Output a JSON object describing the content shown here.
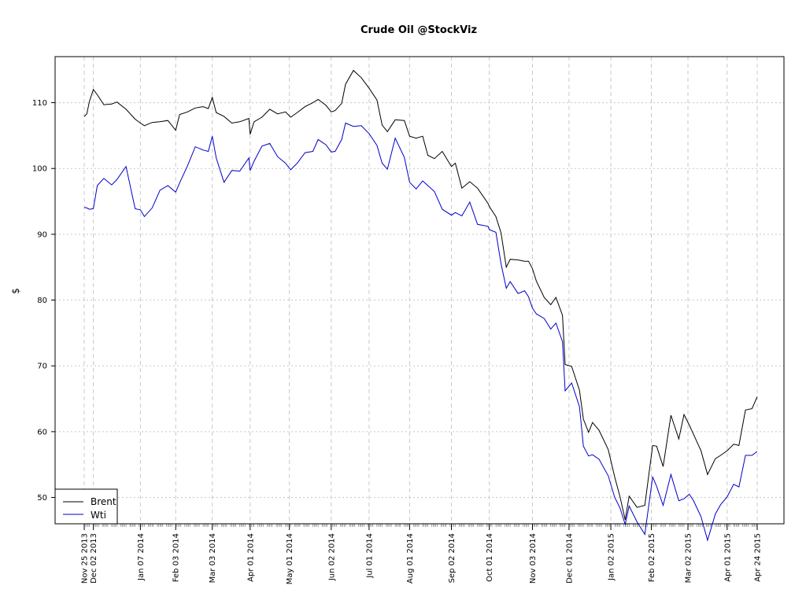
{
  "chart_data": {
    "type": "line",
    "title": "Crude Oil @StockViz",
    "xlabel": "",
    "ylabel": "$",
    "ylim": [
      46,
      117
    ],
    "grid": true,
    "legend_position": "bottom-left",
    "y_ticks": [
      50,
      60,
      70,
      80,
      90,
      100,
      110
    ],
    "x_ticks": [
      "Nov 25 2013",
      "Dec 02 2013",
      "Jan 07 2014",
      "Feb 03 2014",
      "Mar 03 2014",
      "Apr 01 2014",
      "May 01 2014",
      "Jun 02 2014",
      "Jul 01 2014",
      "Aug 01 2014",
      "Sep 02 2014",
      "Oct 01 2014",
      "Nov 03 2014",
      "Dec 01 2014",
      "Jan 02 2015",
      "Feb 02 2015",
      "Mar 02 2015",
      "Apr 01 2015",
      "Apr 24 2015"
    ],
    "series": [
      {
        "name": "Brent",
        "color": "#000000",
        "points": [
          [
            "2013-11-25",
            107.9
          ],
          [
            "2013-11-27",
            108.3
          ],
          [
            "2013-11-29",
            110.2
          ],
          [
            "2013-12-02",
            112.0
          ],
          [
            "2013-12-05",
            111.2
          ],
          [
            "2013-12-10",
            109.7
          ],
          [
            "2013-12-16",
            109.8
          ],
          [
            "2013-12-20",
            110.1
          ],
          [
            "2013-12-27",
            109.0
          ],
          [
            "2014-01-03",
            107.5
          ],
          [
            "2014-01-07",
            106.9
          ],
          [
            "2014-01-10",
            106.5
          ],
          [
            "2014-01-16",
            107.0
          ],
          [
            "2014-01-22",
            107.1
          ],
          [
            "2014-01-28",
            107.3
          ],
          [
            "2014-02-03",
            105.8
          ],
          [
            "2014-02-06",
            108.2
          ],
          [
            "2014-02-12",
            108.6
          ],
          [
            "2014-02-18",
            109.2
          ],
          [
            "2014-02-24",
            109.4
          ],
          [
            "2014-02-28",
            109.1
          ],
          [
            "2014-03-03",
            110.8
          ],
          [
            "2014-03-06",
            108.5
          ],
          [
            "2014-03-12",
            107.9
          ],
          [
            "2014-03-18",
            106.9
          ],
          [
            "2014-03-24",
            107.1
          ],
          [
            "2014-03-31",
            107.6
          ],
          [
            "2014-04-01",
            105.2
          ],
          [
            "2014-04-04",
            107.1
          ],
          [
            "2014-04-10",
            107.8
          ],
          [
            "2014-04-16",
            109.0
          ],
          [
            "2014-04-22",
            108.3
          ],
          [
            "2014-04-28",
            108.6
          ],
          [
            "2014-05-02",
            107.8
          ],
          [
            "2014-05-07",
            108.5
          ],
          [
            "2014-05-13",
            109.4
          ],
          [
            "2014-05-19",
            110.0
          ],
          [
            "2014-05-23",
            110.5
          ],
          [
            "2014-05-29",
            109.6
          ],
          [
            "2014-06-02",
            108.6
          ],
          [
            "2014-06-05",
            108.8
          ],
          [
            "2014-06-10",
            109.9
          ],
          [
            "2014-06-13",
            112.8
          ],
          [
            "2014-06-19",
            114.9
          ],
          [
            "2014-06-25",
            113.8
          ],
          [
            "2014-07-01",
            112.2
          ],
          [
            "2014-07-07",
            110.4
          ],
          [
            "2014-07-11",
            106.6
          ],
          [
            "2014-07-15",
            105.6
          ],
          [
            "2014-07-21",
            107.4
          ],
          [
            "2014-07-28",
            107.3
          ],
          [
            "2014-08-01",
            104.9
          ],
          [
            "2014-08-06",
            104.6
          ],
          [
            "2014-08-11",
            104.9
          ],
          [
            "2014-08-15",
            102.0
          ],
          [
            "2014-08-20",
            101.5
          ],
          [
            "2014-08-26",
            102.6
          ],
          [
            "2014-09-02",
            100.3
          ],
          [
            "2014-09-05",
            100.8
          ],
          [
            "2014-09-10",
            97.0
          ],
          [
            "2014-09-16",
            98.0
          ],
          [
            "2014-09-22",
            97.0
          ],
          [
            "2014-09-30",
            94.7
          ],
          [
            "2014-10-01",
            94.2
          ],
          [
            "2014-10-06",
            92.7
          ],
          [
            "2014-10-10",
            90.2
          ],
          [
            "2014-10-14",
            85.0
          ],
          [
            "2014-10-17",
            86.2
          ],
          [
            "2014-10-23",
            86.1
          ],
          [
            "2014-10-28",
            85.9
          ],
          [
            "2014-10-31",
            85.9
          ],
          [
            "2014-11-03",
            84.8
          ],
          [
            "2014-11-06",
            82.9
          ],
          [
            "2014-11-12",
            80.4
          ],
          [
            "2014-11-17",
            79.3
          ],
          [
            "2014-11-21",
            80.4
          ],
          [
            "2014-11-26",
            77.7
          ],
          [
            "2014-11-28",
            70.2
          ],
          [
            "2014-12-03",
            69.9
          ],
          [
            "2014-12-09",
            66.3
          ],
          [
            "2014-12-12",
            61.9
          ],
          [
            "2014-12-16",
            59.9
          ],
          [
            "2014-12-19",
            61.4
          ],
          [
            "2014-12-24",
            60.2
          ],
          [
            "2014-12-31",
            57.3
          ],
          [
            "2015-01-05",
            53.1
          ],
          [
            "2015-01-09",
            50.1
          ],
          [
            "2015-01-13",
            46.6
          ],
          [
            "2015-01-16",
            50.2
          ],
          [
            "2015-01-22",
            48.5
          ],
          [
            "2015-01-28",
            48.8
          ],
          [
            "2015-02-03",
            57.9
          ],
          [
            "2015-02-06",
            57.8
          ],
          [
            "2015-02-11",
            54.7
          ],
          [
            "2015-02-17",
            62.5
          ],
          [
            "2015-02-23",
            58.9
          ],
          [
            "2015-02-27",
            62.6
          ],
          [
            "2015-03-03",
            61.0
          ],
          [
            "2015-03-06",
            59.7
          ],
          [
            "2015-03-12",
            57.1
          ],
          [
            "2015-03-17",
            53.5
          ],
          [
            "2015-03-23",
            55.9
          ],
          [
            "2015-03-27",
            56.4
          ],
          [
            "2015-04-01",
            57.1
          ],
          [
            "2015-04-06",
            58.1
          ],
          [
            "2015-04-10",
            57.9
          ],
          [
            "2015-04-15",
            63.3
          ],
          [
            "2015-04-20",
            63.5
          ],
          [
            "2015-04-24",
            65.3
          ]
        ]
      },
      {
        "name": "Wti",
        "color": "#0000cc",
        "points": [
          [
            "2013-11-25",
            94.1
          ],
          [
            "2013-11-27",
            94.0
          ],
          [
            "2013-11-29",
            93.8
          ],
          [
            "2013-12-02",
            93.9
          ],
          [
            "2013-12-05",
            97.4
          ],
          [
            "2013-12-10",
            98.5
          ],
          [
            "2013-12-16",
            97.5
          ],
          [
            "2013-12-20",
            98.3
          ],
          [
            "2013-12-27",
            100.3
          ],
          [
            "2014-01-03",
            93.9
          ],
          [
            "2014-01-07",
            93.7
          ],
          [
            "2014-01-10",
            92.7
          ],
          [
            "2014-01-16",
            94.0
          ],
          [
            "2014-01-22",
            96.7
          ],
          [
            "2014-01-28",
            97.4
          ],
          [
            "2014-02-03",
            96.4
          ],
          [
            "2014-02-06",
            97.8
          ],
          [
            "2014-02-12",
            100.4
          ],
          [
            "2014-02-18",
            103.3
          ],
          [
            "2014-02-24",
            102.8
          ],
          [
            "2014-02-28",
            102.6
          ],
          [
            "2014-03-03",
            104.9
          ],
          [
            "2014-03-06",
            101.6
          ],
          [
            "2014-03-12",
            97.9
          ],
          [
            "2014-03-18",
            99.7
          ],
          [
            "2014-03-24",
            99.6
          ],
          [
            "2014-03-31",
            101.6
          ],
          [
            "2014-04-01",
            99.7
          ],
          [
            "2014-04-04",
            101.1
          ],
          [
            "2014-04-10",
            103.4
          ],
          [
            "2014-04-16",
            103.8
          ],
          [
            "2014-04-22",
            101.8
          ],
          [
            "2014-04-28",
            100.8
          ],
          [
            "2014-05-02",
            99.8
          ],
          [
            "2014-05-07",
            100.8
          ],
          [
            "2014-05-13",
            102.4
          ],
          [
            "2014-05-19",
            102.6
          ],
          [
            "2014-05-23",
            104.4
          ],
          [
            "2014-05-29",
            103.6
          ],
          [
            "2014-06-02",
            102.5
          ],
          [
            "2014-06-05",
            102.6
          ],
          [
            "2014-06-10",
            104.4
          ],
          [
            "2014-06-13",
            106.9
          ],
          [
            "2014-06-19",
            106.4
          ],
          [
            "2014-06-25",
            106.5
          ],
          [
            "2014-07-01",
            105.3
          ],
          [
            "2014-07-07",
            103.5
          ],
          [
            "2014-07-11",
            100.8
          ],
          [
            "2014-07-15",
            99.9
          ],
          [
            "2014-07-21",
            104.6
          ],
          [
            "2014-07-28",
            101.7
          ],
          [
            "2014-08-01",
            97.9
          ],
          [
            "2014-08-06",
            96.9
          ],
          [
            "2014-08-11",
            98.1
          ],
          [
            "2014-08-15",
            97.4
          ],
          [
            "2014-08-20",
            96.5
          ],
          [
            "2014-08-26",
            93.8
          ],
          [
            "2014-09-02",
            92.9
          ],
          [
            "2014-09-05",
            93.3
          ],
          [
            "2014-09-10",
            92.8
          ],
          [
            "2014-09-16",
            94.9
          ],
          [
            "2014-09-22",
            91.5
          ],
          [
            "2014-09-30",
            91.2
          ],
          [
            "2014-10-01",
            90.7
          ],
          [
            "2014-10-06",
            90.3
          ],
          [
            "2014-10-10",
            85.5
          ],
          [
            "2014-10-14",
            81.8
          ],
          [
            "2014-10-17",
            82.8
          ],
          [
            "2014-10-23",
            81.0
          ],
          [
            "2014-10-28",
            81.4
          ],
          [
            "2014-10-31",
            80.5
          ],
          [
            "2014-11-03",
            78.8
          ],
          [
            "2014-11-06",
            77.9
          ],
          [
            "2014-11-12",
            77.2
          ],
          [
            "2014-11-17",
            75.6
          ],
          [
            "2014-11-21",
            76.5
          ],
          [
            "2014-11-26",
            73.7
          ],
          [
            "2014-11-28",
            66.2
          ],
          [
            "2014-12-03",
            67.4
          ],
          [
            "2014-12-09",
            63.8
          ],
          [
            "2014-12-12",
            57.8
          ],
          [
            "2014-12-16",
            56.3
          ],
          [
            "2014-12-19",
            56.5
          ],
          [
            "2014-12-24",
            55.8
          ],
          [
            "2014-12-31",
            53.3
          ],
          [
            "2015-01-05",
            50.0
          ],
          [
            "2015-01-09",
            48.4
          ],
          [
            "2015-01-13",
            45.9
          ],
          [
            "2015-01-16",
            48.7
          ],
          [
            "2015-01-22",
            46.3
          ],
          [
            "2015-01-28",
            44.4
          ],
          [
            "2015-02-03",
            53.1
          ],
          [
            "2015-02-06",
            51.7
          ],
          [
            "2015-02-11",
            48.8
          ],
          [
            "2015-02-17",
            53.5
          ],
          [
            "2015-02-23",
            49.5
          ],
          [
            "2015-02-27",
            49.8
          ],
          [
            "2015-03-03",
            50.5
          ],
          [
            "2015-03-06",
            49.6
          ],
          [
            "2015-03-12",
            47.1
          ],
          [
            "2015-03-17",
            43.5
          ],
          [
            "2015-03-23",
            47.5
          ],
          [
            "2015-03-27",
            48.9
          ],
          [
            "2015-04-01",
            50.1
          ],
          [
            "2015-04-06",
            52.0
          ],
          [
            "2015-04-10",
            51.6
          ],
          [
            "2015-04-15",
            56.4
          ],
          [
            "2015-04-20",
            56.4
          ],
          [
            "2015-04-24",
            57.0
          ]
        ]
      }
    ]
  }
}
